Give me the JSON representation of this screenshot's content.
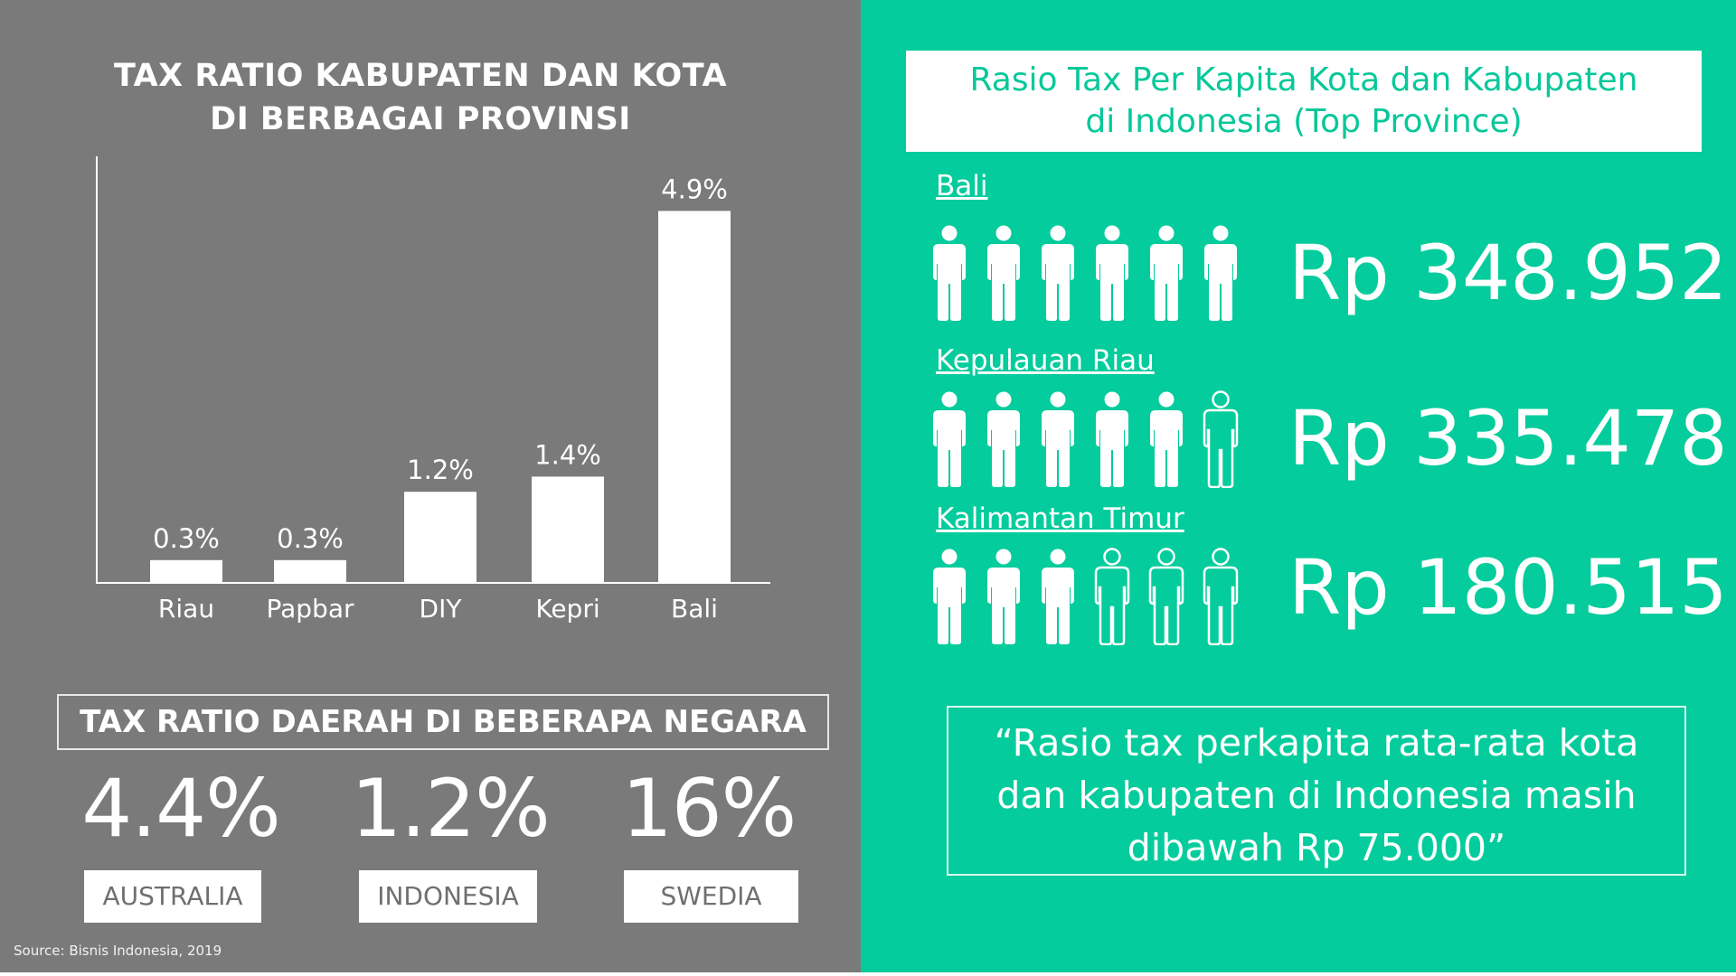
{
  "left": {
    "title_line1": "TAX RATIO KABUPATEN DAN KOTA",
    "title_line2": "DI BERBAGAI PROVINSI",
    "countries_title": "TAX RATIO DAERAH DI BEBERAPA NEGARA",
    "countries": [
      {
        "value": "4.4%",
        "name": "AUSTRALIA"
      },
      {
        "value": "1.2%",
        "name": "INDONESIA"
      },
      {
        "value": "16%",
        "name": "SWEDIA"
      }
    ],
    "source": "Source: Bisnis Indonesia, 2019"
  },
  "chart_data": {
    "type": "bar",
    "title": "TAX RATIO KABUPATEN DAN KOTA DI BERBAGAI PROVINSI",
    "categories": [
      "Riau",
      "Papbar",
      "DIY",
      "Kepri",
      "Bali"
    ],
    "values": [
      0.3,
      0.3,
      1.2,
      1.4,
      4.9
    ],
    "value_labels": [
      "0.3%",
      "0.3%",
      "1.2%",
      "1.4%",
      "4.9%"
    ],
    "unit": "%",
    "ylim": [
      0,
      5
    ],
    "grid": false,
    "bar_color": "#ffffff"
  },
  "right": {
    "title_line1": "Rasio Tax Per Kapita Kota dan Kabupaten",
    "title_line2": "di Indonesia (Top Province)",
    "provinces": [
      {
        "name": "Bali",
        "amount": "Rp 348.952",
        "filled_icons": 6,
        "total_icons": 6
      },
      {
        "name": "Kepulauan Riau",
        "amount": "Rp 335.478",
        "filled_icons": 5,
        "total_icons": 6
      },
      {
        "name": "Kalimantan Timur",
        "amount": "Rp 180.515",
        "filled_icons": 3,
        "total_icons": 6
      }
    ],
    "quote_line1": "“Rasio tax perkapita rata-rata kota",
    "quote_line2": "dan kabupaten di Indonesia masih",
    "quote_line3": "dibawah Rp 75.000”",
    "icon": "person-icon"
  },
  "colors": {
    "left_background": "#7a7a7a",
    "right_background": "#05cc9c",
    "text": "#ffffff"
  }
}
